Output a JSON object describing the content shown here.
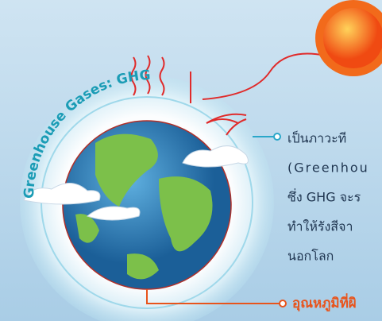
{
  "atmosphere_label": "Greenhouse Gases: GHG",
  "callout": {
    "lines": [
      "เป็นภาวะที",
      "(Greenhou",
      "ซึ่ง GHG จะร",
      "ทำให้รังสีจา",
      "นอกโลก"
    ]
  },
  "bottom_label": "อุณหภูมิที่ผิ"
}
